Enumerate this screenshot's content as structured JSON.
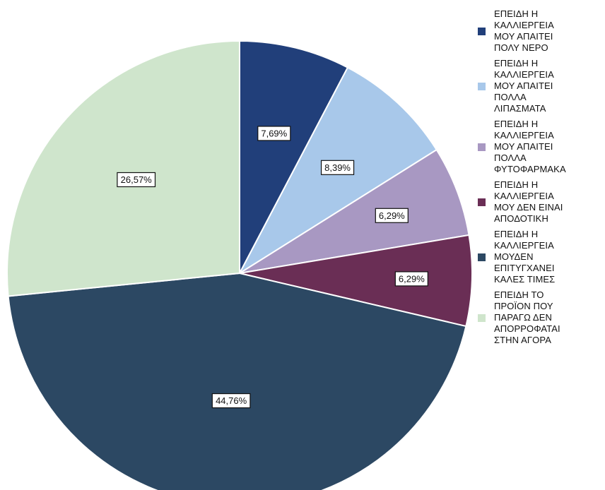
{
  "chart_data": {
    "type": "pie",
    "categories": [
      "ΕΠΕΙΔΗ Η\nΚΑΛΛΙΕΡΓΕΙΑ\nΜΟΥ ΑΠΑΙΤΕΙ\nΠΟΛΥ ΝΕΡΟ",
      "ΕΠΕΙΔΗ Η\nΚΑΛΛΙΕΡΓΕΙΑ\nΜΟΥ ΑΠΑΙΤΕΙ\nΠΟΛΛΑ\nΛΙΠΑΣΜΑΤΑ",
      "ΕΠΕΙΔΗ Η\nΚΑΛΛΙΕΡΓΕΙΑ\nΜΟΥ ΑΠΑΙΤΕΙ\nΠΟΛΛΑ\nΦΥΤΟΦΑΡΜΑΚΑ",
      "ΕΠΕΙΔΗ Η\nΚΑΛΛΙΕΡΓΕΙΑ\nΜΟΥ ΔΕΝ ΕΙΝΑΙ\nΑΠΟΔΟΤΙΚΗ",
      "ΕΠΕΙΔΗ Η\nΚΑΛΛΙΕΡΓΕΙΑ\nΜΟΥΔΕΝ\nΕΠΙΤΥΓΧΑΝΕΙ\nΚΑΛΕΣ ΤΙΜΕΣ",
      "ΕΠΕΙΔΗ ΤΟ\nΠΡΟΪΟΝ ΠΟΥ\nΠΑΡΑΓΩ ΔΕΝ\nΑΠΟΡΡΟΦΑΤΑΙ\nΣΤΗΝ ΑΓΟΡΑ"
    ],
    "values": [
      7.69,
      8.39,
      6.29,
      6.29,
      44.76,
      26.57
    ],
    "data_labels": [
      "7,69%",
      "8,39%",
      "6,29%",
      "6,29%",
      "44,76%",
      "26,57%"
    ],
    "colors": [
      "#213F7A",
      "#A8C8EA",
      "#A898C2",
      "#6A2E55",
      "#2C4863",
      "#CFE5CC"
    ],
    "legend_placement": "right",
    "start_angle": "12 o'clock",
    "direction": "clockwise"
  }
}
